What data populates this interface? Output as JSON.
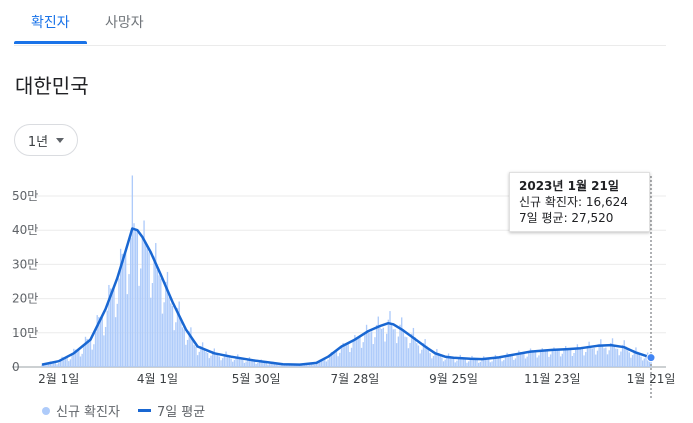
{
  "tabs": [
    {
      "label": "확진자",
      "active": true
    },
    {
      "label": "사망자",
      "active": false
    }
  ],
  "region": "대한민국",
  "range_selector": {
    "label": "1년",
    "icon": "caret-down-icon"
  },
  "tooltip": {
    "date": "2023년 1월 21일",
    "new_cases": "신규 확진자: 16,624",
    "avg7": "7일 평균: 27,520"
  },
  "legend": {
    "cases": "신규 확진자",
    "avg7": "7일 평균"
  },
  "colors": {
    "bars": "#aecbfa",
    "line": "#1967d2",
    "accent": "#1a73e8"
  },
  "chart_data": {
    "type": "bar",
    "x_start": "2022-01-22",
    "x_end": "2023-01-21",
    "ylim": [
      0,
      550000
    ],
    "yticks": [
      0,
      100000,
      200000,
      300000,
      400000,
      500000
    ],
    "ytick_labels": [
      "0",
      "10만",
      "20만",
      "30만",
      "40만",
      "50만"
    ],
    "xticks": [
      {
        "date": "2022-02-01",
        "label": "2월 1일"
      },
      {
        "date": "2022-04-01",
        "label": "4월 1일"
      },
      {
        "date": "2022-05-30",
        "label": "5월 30일"
      },
      {
        "date": "2022-07-28",
        "label": "7월 28일"
      },
      {
        "date": "2022-09-25",
        "label": "9월 25일"
      },
      {
        "date": "2022-11-23",
        "label": "11월 23일"
      },
      {
        "date": "2023-01-21",
        "label": "1월 21일"
      }
    ],
    "series": [
      {
        "name": "7일 평균",
        "type": "line",
        "points": [
          [
            "2022-01-22",
            7000
          ],
          [
            "2022-02-01",
            17000
          ],
          [
            "2022-02-10",
            40000
          ],
          [
            "2022-02-20",
            80000
          ],
          [
            "2022-03-01",
            170000
          ],
          [
            "2022-03-08",
            260000
          ],
          [
            "2022-03-13",
            340000
          ],
          [
            "2022-03-17",
            405000
          ],
          [
            "2022-03-20",
            400000
          ],
          [
            "2022-03-23",
            380000
          ],
          [
            "2022-03-28",
            335000
          ],
          [
            "2022-04-03",
            270000
          ],
          [
            "2022-04-10",
            190000
          ],
          [
            "2022-04-18",
            110000
          ],
          [
            "2022-04-25",
            60000
          ],
          [
            "2022-05-05",
            40000
          ],
          [
            "2022-05-15",
            30000
          ],
          [
            "2022-05-30",
            18000
          ],
          [
            "2022-06-15",
            8000
          ],
          [
            "2022-06-25",
            7000
          ],
          [
            "2022-07-05",
            12000
          ],
          [
            "2022-07-12",
            30000
          ],
          [
            "2022-07-20",
            60000
          ],
          [
            "2022-07-28",
            80000
          ],
          [
            "2022-08-05",
            105000
          ],
          [
            "2022-08-12",
            120000
          ],
          [
            "2022-08-17",
            128000
          ],
          [
            "2022-08-20",
            125000
          ],
          [
            "2022-08-25",
            110000
          ],
          [
            "2022-09-01",
            85000
          ],
          [
            "2022-09-08",
            60000
          ],
          [
            "2022-09-14",
            40000
          ],
          [
            "2022-09-20",
            30000
          ],
          [
            "2022-09-25",
            27000
          ],
          [
            "2022-10-05",
            24000
          ],
          [
            "2022-10-12",
            23000
          ],
          [
            "2022-10-22",
            28000
          ],
          [
            "2022-11-01",
            37000
          ],
          [
            "2022-11-10",
            45000
          ],
          [
            "2022-11-23",
            50000
          ],
          [
            "2022-12-01",
            52000
          ],
          [
            "2022-12-10",
            55000
          ],
          [
            "2022-12-20",
            62000
          ],
          [
            "2022-12-28",
            64000
          ],
          [
            "2023-01-05",
            58000
          ],
          [
            "2023-01-12",
            42000
          ],
          [
            "2023-01-21",
            27520
          ]
        ]
      },
      {
        "name": "신규 확진자",
        "type": "bar",
        "peak_date": "2022-03-17",
        "peak_value": 560000
      }
    ]
  }
}
